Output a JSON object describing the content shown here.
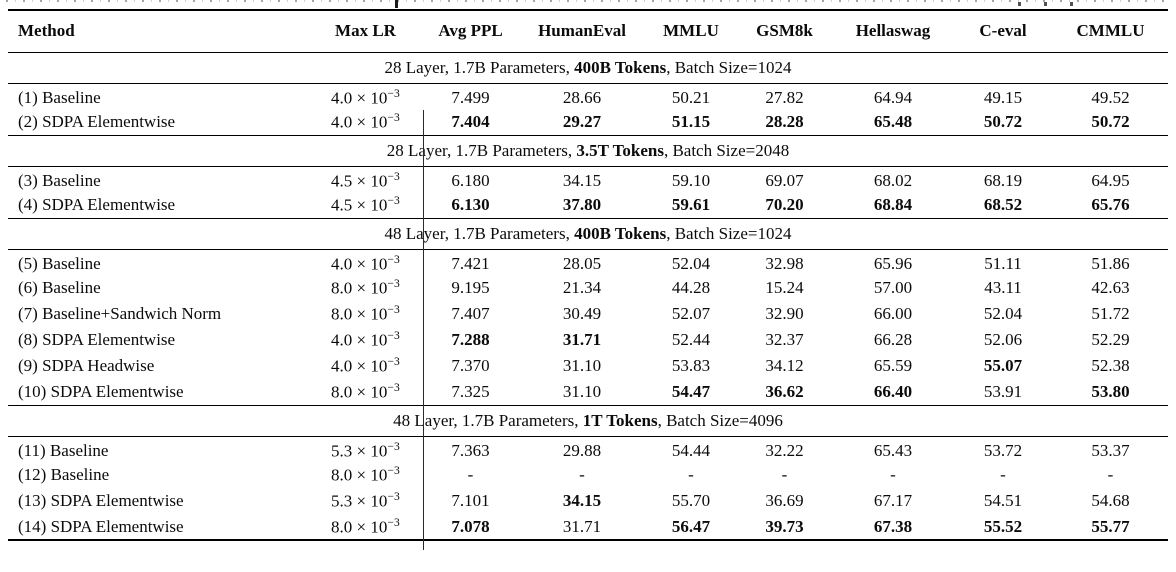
{
  "table": {
    "columns": [
      "Method",
      "Max LR",
      "Avg PPL",
      "HumanEval",
      "MMLU",
      "GSM8k",
      "Hellaswag",
      "C-eval",
      "CMMLU"
    ],
    "sections": [
      {
        "header": {
          "prefix": "28 Layer, 1.7B Parameters, ",
          "bold": "400B Tokens",
          "suffix": ", Batch Size=1024"
        },
        "rows": [
          {
            "method": "(1) Baseline",
            "lr_text": "4.0 × 10",
            "lr_sup": "−3",
            "values": [
              "7.499",
              "28.66",
              "50.21",
              "27.82",
              "64.94",
              "49.15",
              "49.52"
            ],
            "bold": [
              false,
              false,
              false,
              false,
              false,
              false,
              false
            ]
          },
          {
            "method": "(2) SDPA Elementwise",
            "lr_text": "4.0 × 10",
            "lr_sup": "−3",
            "values": [
              "7.404",
              "29.27",
              "51.15",
              "28.28",
              "65.48",
              "50.72",
              "50.72"
            ],
            "bold": [
              true,
              true,
              true,
              true,
              true,
              true,
              true
            ]
          }
        ]
      },
      {
        "header": {
          "prefix": "28 Layer, 1.7B Parameters, ",
          "bold": "3.5T Tokens",
          "suffix": ", Batch Size=2048"
        },
        "rows": [
          {
            "method": "(3) Baseline",
            "lr_text": "4.5 × 10",
            "lr_sup": "−3",
            "values": [
              "6.180",
              "34.15",
              "59.10",
              "69.07",
              "68.02",
              "68.19",
              "64.95"
            ],
            "bold": [
              false,
              false,
              false,
              false,
              false,
              false,
              false
            ]
          },
          {
            "method": "(4) SDPA Elementwise",
            "lr_text": "4.5 × 10",
            "lr_sup": "−3",
            "values": [
              "6.130",
              "37.80",
              "59.61",
              "70.20",
              "68.84",
              "68.52",
              "65.76"
            ],
            "bold": [
              true,
              true,
              true,
              true,
              true,
              true,
              true
            ]
          }
        ]
      },
      {
        "header": {
          "prefix": "48 Layer, 1.7B Parameters, ",
          "bold": "400B Tokens",
          "suffix": ", Batch Size=1024"
        },
        "rows": [
          {
            "method": "(5) Baseline",
            "lr_text": "4.0 × 10",
            "lr_sup": "−3",
            "values": [
              "7.421",
              "28.05",
              "52.04",
              "32.98",
              "65.96",
              "51.11",
              "51.86"
            ],
            "bold": [
              false,
              false,
              false,
              false,
              false,
              false,
              false
            ]
          },
          {
            "method": "(6) Baseline",
            "lr_text": "8.0 × 10",
            "lr_sup": "−3",
            "values": [
              "9.195",
              "21.34",
              "44.28",
              "15.24",
              "57.00",
              "43.11",
              "42.63"
            ],
            "bold": [
              false,
              false,
              false,
              false,
              false,
              false,
              false
            ]
          },
          {
            "method": "(7) Baseline+Sandwich Norm",
            "lr_text": "8.0 × 10",
            "lr_sup": "−3",
            "values": [
              "7.407",
              "30.49",
              "52.07",
              "32.90",
              "66.00",
              "52.04",
              "51.72"
            ],
            "bold": [
              false,
              false,
              false,
              false,
              false,
              false,
              false
            ]
          },
          {
            "method": "(8) SDPA Elementwise",
            "lr_text": "4.0 × 10",
            "lr_sup": "−3",
            "values": [
              "7.288",
              "31.71",
              "52.44",
              "32.37",
              "66.28",
              "52.06",
              "52.29"
            ],
            "bold": [
              true,
              true,
              false,
              false,
              false,
              false,
              false
            ]
          },
          {
            "method": "(9) SDPA Headwise",
            "lr_text": "4.0 × 10",
            "lr_sup": "−3",
            "values": [
              "7.370",
              "31.10",
              "53.83",
              "34.12",
              "65.59",
              "55.07",
              "52.38"
            ],
            "bold": [
              false,
              false,
              false,
              false,
              false,
              true,
              false
            ]
          },
          {
            "method": "(10) SDPA Elementwise",
            "lr_text": "8.0 × 10",
            "lr_sup": "−3",
            "values": [
              "7.325",
              "31.10",
              "54.47",
              "36.62",
              "66.40",
              "53.91",
              "53.80"
            ],
            "bold": [
              false,
              false,
              true,
              true,
              true,
              false,
              true
            ]
          }
        ]
      },
      {
        "header": {
          "prefix": "48 Layer, 1.7B Parameters, ",
          "bold": "1T Tokens",
          "suffix": ", Batch Size=4096"
        },
        "rows": [
          {
            "method": "(11) Baseline",
            "lr_text": "5.3 × 10",
            "lr_sup": "−3",
            "values": [
              "7.363",
              "29.88",
              "54.44",
              "32.22",
              "65.43",
              "53.72",
              "53.37"
            ],
            "bold": [
              false,
              false,
              false,
              false,
              false,
              false,
              false
            ]
          },
          {
            "method": "(12) Baseline",
            "lr_text": "8.0 × 10",
            "lr_sup": "−3",
            "values": [
              "-",
              "-",
              "-",
              "-",
              "-",
              "-",
              "-"
            ],
            "bold": [
              false,
              false,
              false,
              false,
              false,
              false,
              false
            ]
          },
          {
            "method": "(13) SDPA Elementwise",
            "lr_text": "5.3 × 10",
            "lr_sup": "−3",
            "values": [
              "7.101",
              "34.15",
              "55.70",
              "36.69",
              "67.17",
              "54.51",
              "54.68"
            ],
            "bold": [
              false,
              true,
              false,
              false,
              false,
              false,
              false
            ]
          },
          {
            "method": "(14) SDPA Elementwise",
            "lr_text": "8.0 × 10",
            "lr_sup": "−3",
            "values": [
              "7.078",
              "31.71",
              "56.47",
              "39.73",
              "67.38",
              "55.52",
              "55.77"
            ],
            "bold": [
              true,
              false,
              true,
              true,
              true,
              true,
              true
            ]
          }
        ]
      }
    ]
  }
}
